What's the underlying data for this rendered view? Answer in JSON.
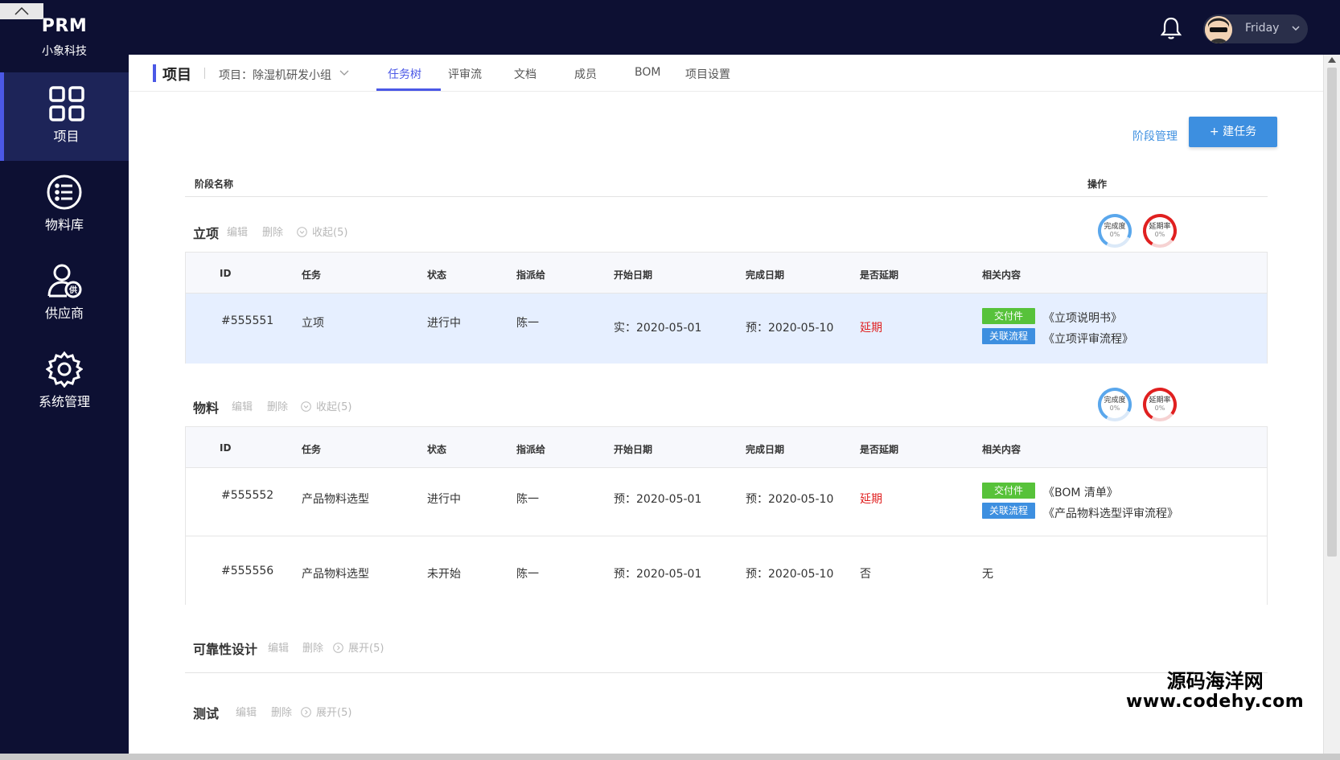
{
  "app": {
    "brand": "PRM",
    "company": "小象科技"
  },
  "sidebar": {
    "items": [
      {
        "label": "项目",
        "icon": "grid-icon",
        "active": true
      },
      {
        "label": "物料库",
        "icon": "list-icon",
        "active": false
      },
      {
        "label": "供应商",
        "icon": "supplier-user-icon",
        "active": false
      },
      {
        "label": "系统管理",
        "icon": "gear-icon",
        "active": false
      }
    ]
  },
  "topbar": {
    "user_name": "Friday",
    "notification_icon": "bell-icon"
  },
  "header": {
    "title": "项目",
    "project_label": "项目：除湿机研发小组",
    "tabs": [
      "任务树",
      "评审流",
      "文档",
      "成员",
      "BOM",
      "项目设置"
    ],
    "active_tab": "任务树"
  },
  "toolbar": {
    "stage_mgmt": "阶段管理",
    "new_task": "+ 建任务"
  },
  "columns": {
    "stage_name": "阶段名称",
    "operation": "操作"
  },
  "task_headers": [
    "ID",
    "任务",
    "状态",
    "指派给",
    "开始日期",
    "完成日期",
    "是否延期",
    "相关内容"
  ],
  "stage_actions": {
    "edit": "编辑",
    "delete": "删除"
  },
  "rings": {
    "completion": "完成度",
    "delay": "延期率"
  },
  "tags": {
    "deliverable": "交付件",
    "linked_flow": "关联流程"
  },
  "stages": [
    {
      "name": "立项",
      "toggle": "收起(5)",
      "completion": "0%",
      "delay": "0%",
      "tasks": [
        {
          "id": "#555551",
          "task": "立项",
          "status": "进行中",
          "assignee": "陈一",
          "start": "实：2020-05-01",
          "end": "预：2020-05-10",
          "delayed": "延期",
          "rel1": "《立项说明书》",
          "rel2": "《立项评审流程》"
        }
      ]
    },
    {
      "name": "物料",
      "toggle": "收起(5)",
      "completion": "0%",
      "delay": "0%",
      "tasks": [
        {
          "id": "#555552",
          "task": "产品物料选型",
          "status": "进行中",
          "assignee": "陈一",
          "start": "预：2020-05-01",
          "end": "预：2020-05-10",
          "delayed": "延期",
          "rel1": "《BOM 清单》",
          "rel2": "《产品物料选型评审流程》"
        },
        {
          "id": "#555556",
          "task": "产品物料选型",
          "status": "未开始",
          "assignee": "陈一",
          "start": "预：2020-05-01",
          "end": "预：2020-05-10",
          "delayed": "否",
          "rel": "无"
        }
      ]
    },
    {
      "name": "可靠性设计",
      "toggle": "展开(5)"
    },
    {
      "name": "测试",
      "toggle": "展开(5)"
    }
  ],
  "watermark": {
    "line1": "源码海洋网",
    "line2": "www.codehy.com"
  },
  "colors": {
    "sidebar": "#0d1033",
    "accent": "#4b58e6",
    "primary": "#3d8fe0",
    "green": "#57c23a",
    "red": "#e02020"
  }
}
